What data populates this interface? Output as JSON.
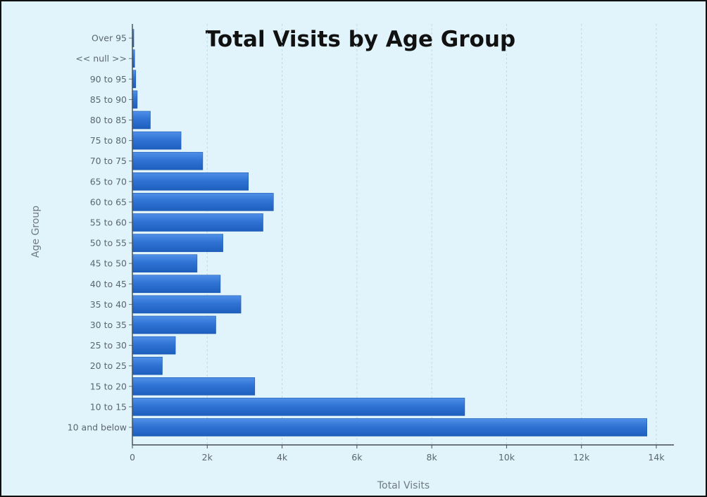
{
  "chart_data": {
    "type": "bar",
    "orientation": "horizontal",
    "title": "Total Visits by Age Group",
    "xlabel": "Total Visits",
    "ylabel": "Age Group",
    "categories": [
      "10 and below",
      "10 to 15",
      "15 to 20",
      "20 to 25",
      "25 to 30",
      "30 to 35",
      "35 to 40",
      "40 to 45",
      "45 to 50",
      "50 to 55",
      "55 to 60",
      "60 to 65",
      "65 to 70",
      "70 to 75",
      "75 to 80",
      "80 to 85",
      "85 to 90",
      "90 to 95",
      "<< null >>",
      "Over 95"
    ],
    "values": [
      13750,
      8880,
      3270,
      800,
      1150,
      2230,
      2900,
      2350,
      1730,
      2420,
      3490,
      3770,
      3100,
      1880,
      1300,
      480,
      130,
      90,
      60,
      30
    ],
    "xlim": [
      0,
      14000
    ],
    "xticks": [
      0,
      2000,
      4000,
      6000,
      8000,
      10000,
      12000,
      14000
    ],
    "xtick_labels": [
      "0",
      "2k",
      "4k",
      "6k",
      "8k",
      "10k",
      "12k",
      "14k"
    ],
    "grid": "vertical dashed",
    "legend": "none",
    "bar_color": "#2f73d4",
    "bar_color_dark": "#1e5fbd",
    "bar_color_light": "#4f90e8"
  }
}
